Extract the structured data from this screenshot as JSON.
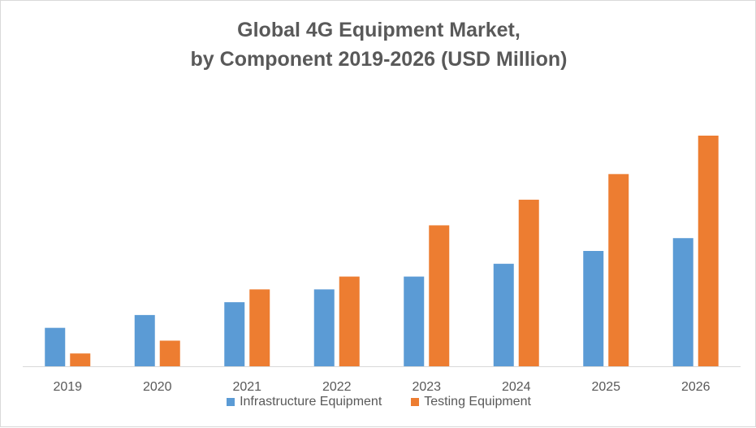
{
  "chart_data": {
    "type": "bar",
    "title_line1": "Global 4G Equipment Market,",
    "title_line2": "by Component 2019-2026 (USD Million)",
    "categories": [
      "2019",
      "2020",
      "2021",
      "2022",
      "2023",
      "2024",
      "2025",
      "2026"
    ],
    "series": [
      {
        "name": "Infrastructure Equipment",
        "color": "#5b9bd5",
        "values": [
          3,
          4,
          5,
          6,
          7,
          8,
          9,
          10
        ]
      },
      {
        "name": "Testing Equipment",
        "color": "#ed7d31",
        "values": [
          1,
          2,
          6,
          7,
          11,
          13,
          15,
          18
        ]
      }
    ],
    "ylim": [
      0,
      18
    ],
    "grid": false,
    "legend_position": "bottom"
  }
}
